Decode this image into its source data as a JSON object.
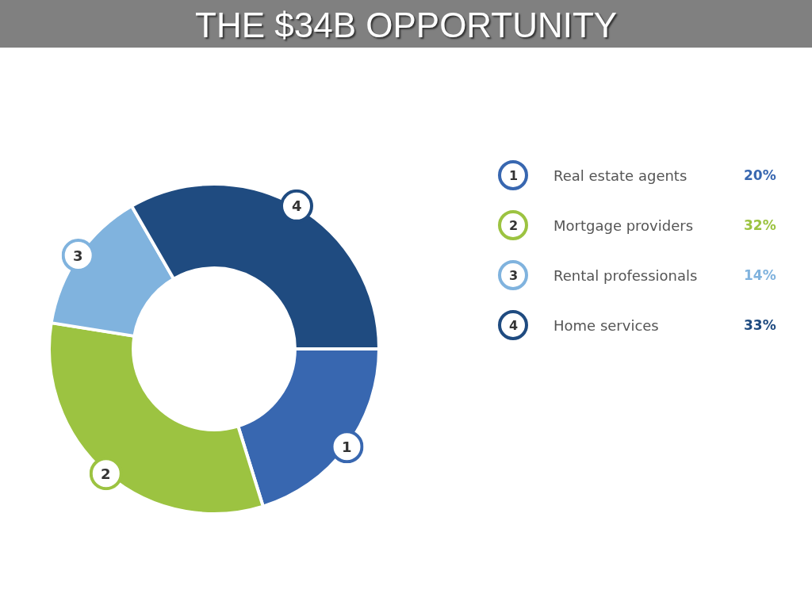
{
  "chart_data": {
    "type": "donut",
    "title": "THE $34B OPPORTUNITY",
    "categories": [
      "Real estate agents",
      "Mortgage providers",
      "Rental professionals",
      "Home services"
    ],
    "values": [
      20,
      32,
      14,
      33
    ],
    "colors": [
      "#3867b0",
      "#9cc341",
      "#80b3de",
      "#1f4b80"
    ],
    "value_labels": [
      "20%",
      "32%",
      "14%",
      "33%"
    ],
    "annotations": [
      {
        "text": "1",
        "x": "Real estate agents"
      },
      {
        "text": "2",
        "x": "Mortgage providers"
      },
      {
        "text": "3",
        "x": "Rental professionals"
      },
      {
        "text": "4",
        "x": "Home services"
      }
    ],
    "legend": "right"
  }
}
